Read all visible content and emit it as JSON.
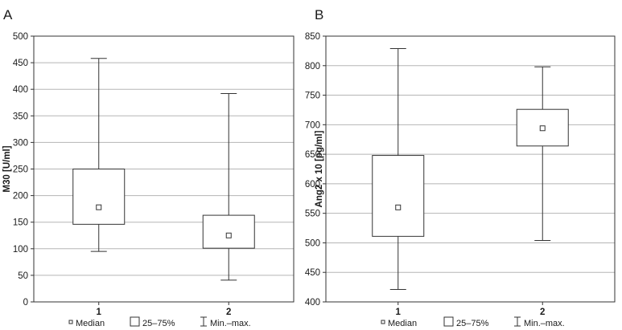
{
  "chart_data": [
    {
      "type": "box",
      "panel_label": "A",
      "title": "",
      "xlabel": "",
      "ylabel": "M30 [U/ml]",
      "ylim": [
        0,
        500
      ],
      "yticks": [
        0,
        50,
        100,
        150,
        200,
        250,
        300,
        350,
        400,
        450,
        500
      ],
      "grid": true,
      "categories": [
        "1",
        "2"
      ],
      "boxes": [
        {
          "category": "1",
          "min": 95,
          "q1": 146,
          "median": 178,
          "q3": 250,
          "max": 458
        },
        {
          "category": "2",
          "min": 41,
          "q1": 101,
          "median": 125,
          "q3": 163,
          "max": 392
        }
      ],
      "legend": {
        "position": "bottom",
        "entries": [
          {
            "symbol": "median",
            "label": "Median"
          },
          {
            "symbol": "box",
            "label": "25–75%"
          },
          {
            "symbol": "whisker",
            "label": "Min.–max."
          }
        ]
      }
    },
    {
      "type": "box",
      "panel_label": "B",
      "title": "",
      "xlabel": "",
      "ylabel": "Ang2 x 10 [pg/ml]",
      "ylim": [
        400,
        850
      ],
      "yticks": [
        400,
        450,
        500,
        550,
        600,
        650,
        700,
        750,
        800,
        850
      ],
      "grid": true,
      "categories": [
        "1",
        "2"
      ],
      "boxes": [
        {
          "category": "1",
          "min": 421,
          "q1": 511,
          "median": 560,
          "q3": 648,
          "max": 829
        },
        {
          "category": "2",
          "min": 504,
          "q1": 664,
          "median": 694,
          "q3": 726,
          "max": 798
        }
      ],
      "legend": {
        "position": "bottom",
        "entries": [
          {
            "symbol": "median",
            "label": "Median"
          },
          {
            "symbol": "box",
            "label": "25–75%"
          },
          {
            "symbol": "whisker",
            "label": "Min.–max."
          }
        ]
      }
    }
  ]
}
